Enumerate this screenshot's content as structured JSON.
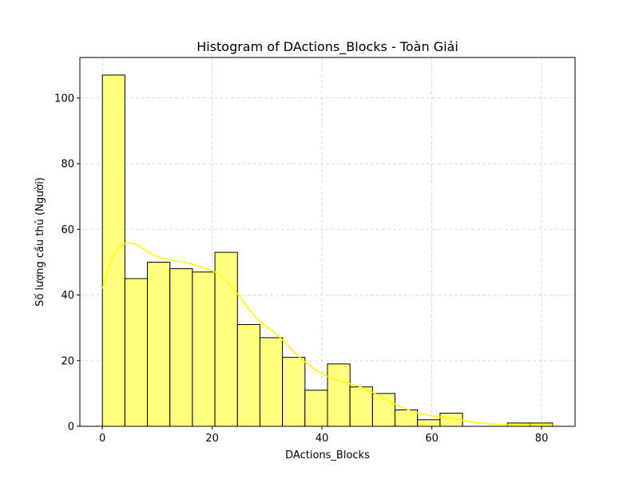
{
  "chart_data": {
    "type": "bar",
    "title": "Histogram of DActions_Blocks - Toàn Giải",
    "xlabel": "DActions_Blocks",
    "ylabel": "Số lượng cầu thủ (Người)",
    "xlim": [
      -4.1,
      86.1
    ],
    "ylim": [
      0,
      112.35
    ],
    "xticks": [
      0,
      20,
      40,
      60,
      80
    ],
    "yticks": [
      0,
      20,
      40,
      60,
      80,
      100
    ],
    "grid": true,
    "bin_edges": [
      0,
      4.1,
      8.2,
      12.3,
      16.4,
      20.5,
      24.6,
      28.7,
      32.8,
      36.9,
      41.0,
      45.1,
      49.2,
      53.3,
      57.4,
      61.5,
      65.6,
      69.7,
      73.8,
      77.9,
      82.0
    ],
    "counts": [
      107,
      45,
      50,
      48,
      47,
      53,
      31,
      27,
      21,
      11,
      19,
      12,
      10,
      5,
      2,
      4,
      0,
      0,
      1,
      1
    ],
    "bar_color": "#ffff80",
    "bar_edge_color": "#000000",
    "kde": {
      "color": "#ffff00",
      "x": [
        0,
        1.5,
        3,
        4.5,
        6,
        7.5,
        9,
        11,
        13,
        15,
        17,
        19,
        21,
        23,
        25,
        27,
        29,
        31,
        33,
        35,
        37,
        39,
        41,
        43,
        45,
        47,
        49,
        51,
        53,
        55,
        57,
        59,
        61,
        63,
        65,
        67,
        69,
        71,
        73,
        75,
        77,
        79,
        82
      ],
      "y": [
        42,
        50,
        54.5,
        55.8,
        55.5,
        54,
        52.5,
        51.2,
        50.5,
        50,
        49,
        48,
        46.5,
        43.5,
        39.5,
        35,
        31.5,
        29,
        26,
        22.5,
        19.5,
        17,
        15.2,
        14,
        13,
        12,
        10.5,
        8.8,
        7,
        5.5,
        4.2,
        3.5,
        3,
        2.6,
        2,
        1.4,
        1,
        0.7,
        0.5,
        0.5,
        0.6,
        0.6,
        0.5
      ]
    }
  }
}
